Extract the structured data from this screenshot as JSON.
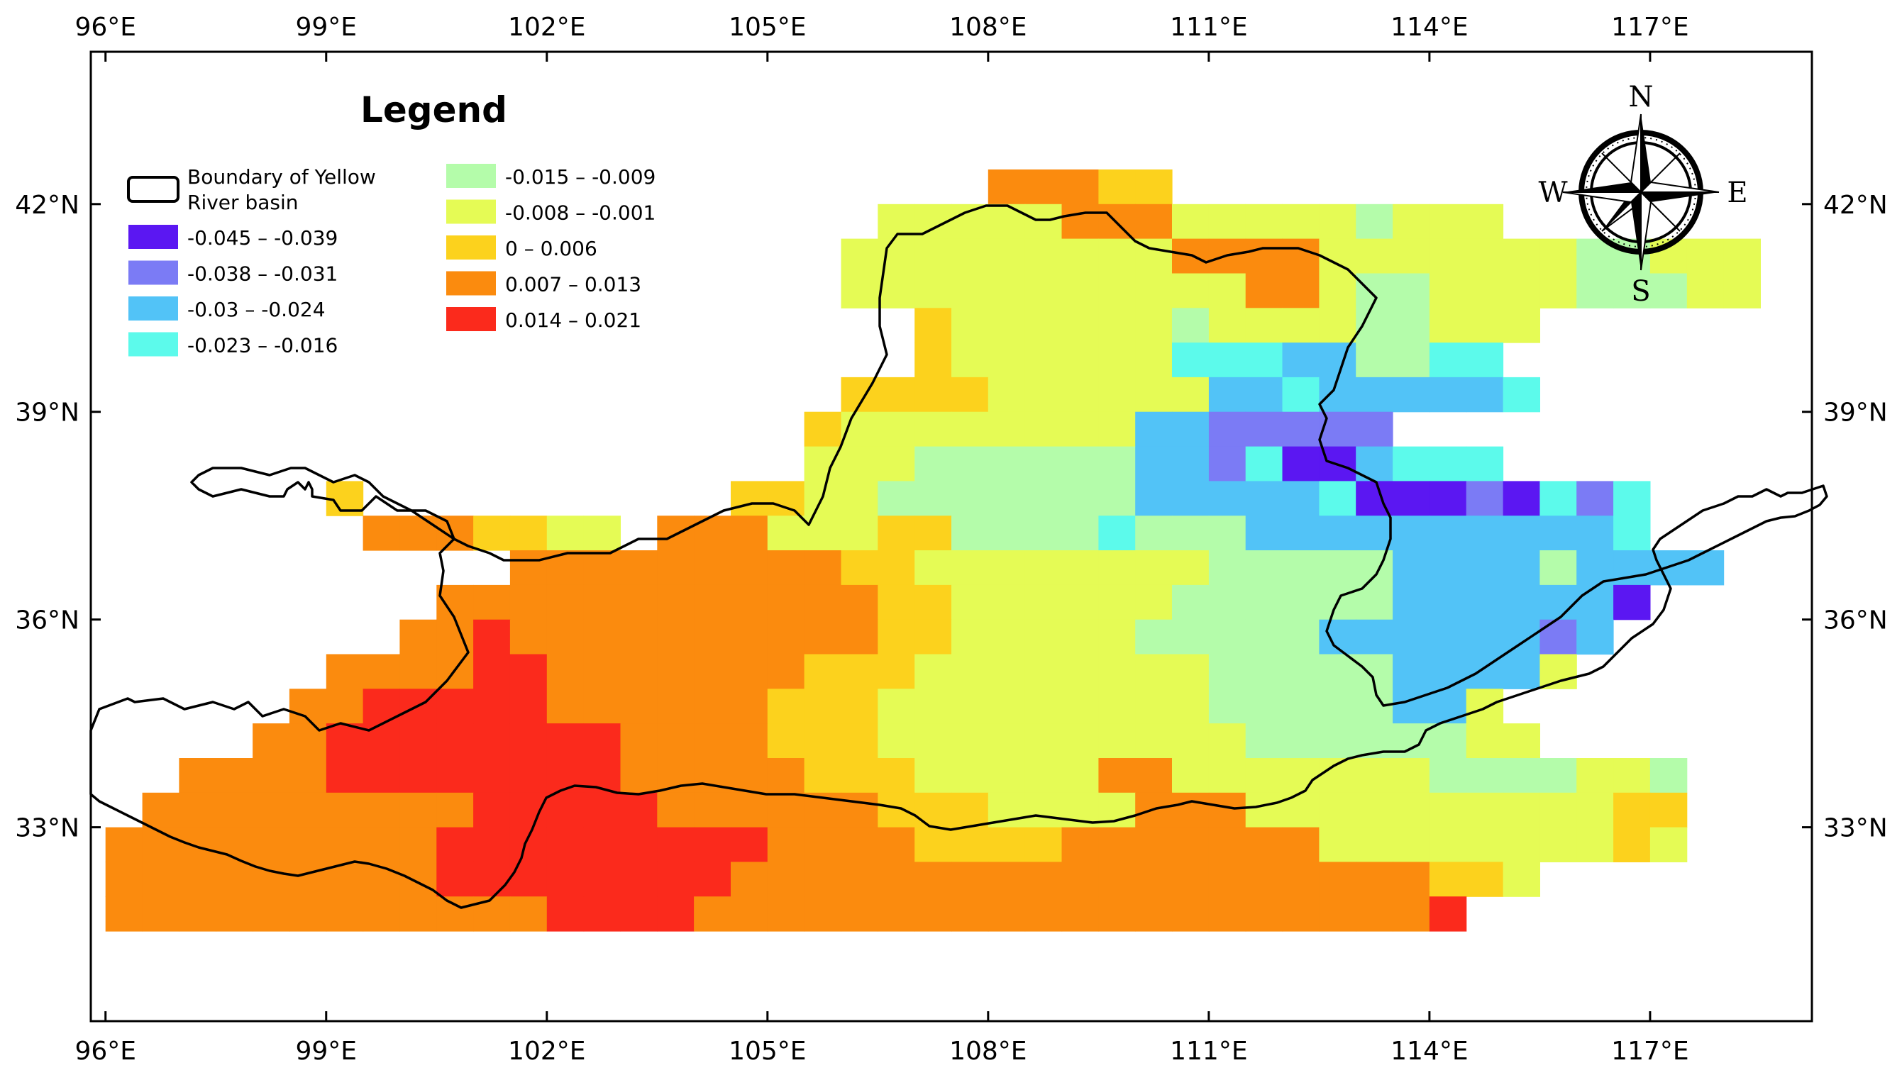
{
  "map": {
    "lon_labels": [
      "96°E",
      "99°E",
      "102°E",
      "105°E",
      "108°E",
      "111°E",
      "114°E",
      "117°E"
    ],
    "lat_labels": [
      "42°N",
      "39°N",
      "36°N",
      "33°N"
    ],
    "lon_values": [
      96,
      99,
      102,
      105,
      108,
      111,
      114,
      117
    ],
    "lat_values": [
      42,
      39,
      36,
      33
    ],
    "lon_range": [
      95.8,
      119.2
    ],
    "lat_range": [
      30.2,
      44.2
    ],
    "grid_step_deg": 0.5
  },
  "legend": {
    "title": "Legend",
    "boundary_label_line1": "Boundary of Yellow",
    "boundary_label_line2": "River basin",
    "classes": [
      {
        "label": "-0.045 – -0.039",
        "color": "#5b17f2"
      },
      {
        "label": "-0.038 – -0.031",
        "color": "#7b7bf5"
      },
      {
        "label": "-0.03 – -0.024",
        "color": "#52c3f7"
      },
      {
        "label": "-0.023 – -0.016",
        "color": "#5cfaeb"
      },
      {
        "label": "-0.015 – -0.009",
        "color": "#b4fcaa"
      },
      {
        "label": "-0.008 – -0.001",
        "color": "#e5fb55"
      },
      {
        "label": "0 – 0.006",
        "color": "#fcd21d"
      },
      {
        "label": "0.007 – 0.013",
        "color": "#fb8b0e"
      },
      {
        "label": "0.014 – 0.021",
        "color": "#fb2a1c"
      }
    ]
  },
  "compass": {
    "north": "N",
    "south": "S",
    "east": "E",
    "west": "W"
  },
  "grid": {
    "rows": [
      {
        "lat": 42.0,
        "start": 108.0,
        "cells": "88877"
      },
      {
        "lat": 41.5,
        "start": 106.5,
        "cells": "66666888666665666"
      },
      {
        "lat": 41.0,
        "start": 106.0,
        "cells": "6666666668888666666655666"
      },
      {
        "lat": 40.5,
        "start": 106.0,
        "cells": "6666666666688655666655566"
      },
      {
        "lat": 40.0,
        "start": 107.0,
        "cells": "76666665666655666"
      },
      {
        "lat": 39.5,
        "start": 107.0,
        "cells": "7666666444335544"
      },
      {
        "lat": 39.0,
        "start": 106.0,
        "cells": "7777666666334333334"
      },
      {
        "lat": 38.5,
        "start": 105.5,
        "cells": "7666666663322222"
      },
      {
        "lat": 38.0,
        "start": 105.5,
        "cells": "6665555553324113444"
      },
      {
        "lat": 37.5,
        "start": 99.0,
        "cells": "7"
      },
      {
        "lat": 37.5,
        "start": 104.5,
        "cells": "7766555555533333411121424"
      },
      {
        "lat": 37.0,
        "start": 99.5,
        "cells": "8887766"
      },
      {
        "lat": 37.0,
        "start": 103.5,
        "cells": "888666775555455533333333334"
      },
      {
        "lat": 36.5,
        "start": 101.5,
        "cells": "8888888887766666666555553333533330"
      },
      {
        "lat": 36.0,
        "start": 100.5,
        "cells": "888888888888776666665555553333331"
      },
      {
        "lat": 35.5,
        "start": 100.0,
        "cells": "889888888888877666665555533333323"
      },
      {
        "lat": 35.0,
        "start": 99.0,
        "cells": "8888998888888777666666665555533336"
      },
      {
        "lat": 34.5,
        "start": 98.5,
        "cells": "889999988888877766666666655555336"
      },
      {
        "lat": 34.0,
        "start": 98.0,
        "cells": "88999999998888777666666666655555566"
      },
      {
        "lat": 33.5,
        "start": 97.0,
        "cells": "88889999999988888777666668866666665555665"
      },
      {
        "lat": 33.0,
        "start": 96.5,
        "cells": "888888888999998888887776666888666666666677"
      },
      {
        "lat": 32.5,
        "start": 96.0,
        "cells": "8888888889999999998888777788888886666666676"
      },
      {
        "lat": 32.0,
        "start": 96.0,
        "cells": "888888888999999998888888888888888888776"
      },
      {
        "lat": 31.5,
        "start": 96.0,
        "cells": "8888888888889999888888888888888888889"
      }
    ]
  }
}
